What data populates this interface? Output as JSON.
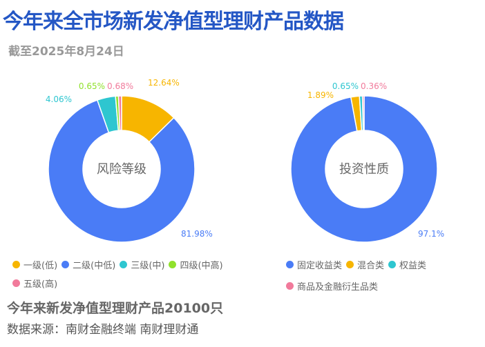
{
  "title": "今年来全市场新发净值型理财产品数据",
  "subtitle": "截至2025年8月24日",
  "summary": "今年来新发净值型理财产品20100只",
  "source": "数据来源：南财金融终端 南财理财通",
  "chart_data": [
    {
      "type": "pie",
      "donut": true,
      "center_label": "风险等级",
      "legend_position": "bottom",
      "categories": [
        "一级(低)",
        "二级(中低)",
        "三级(中)",
        "四级(中高)",
        "五级(高)"
      ],
      "values": [
        12.64,
        81.98,
        4.06,
        0.65,
        0.68
      ],
      "labels": [
        "12.64%",
        "81.98%",
        "4.06%",
        "0.65%",
        "0.68%"
      ],
      "colors": [
        "#f7b500",
        "#4a7cf6",
        "#2ec6d0",
        "#90e12c",
        "#f17a9b"
      ]
    },
    {
      "type": "pie",
      "donut": true,
      "center_label": "投资性质",
      "legend_position": "bottom",
      "categories": [
        "固定收益类",
        "混合类",
        "权益类",
        "商品及金融衍生品类"
      ],
      "values": [
        97.1,
        1.89,
        0.65,
        0.36
      ],
      "labels": [
        "97.1%",
        "1.89%",
        "0.65%",
        "0.36%"
      ],
      "colors": [
        "#4a7cf6",
        "#f7b500",
        "#2ec6d0",
        "#f17a9b"
      ]
    }
  ]
}
